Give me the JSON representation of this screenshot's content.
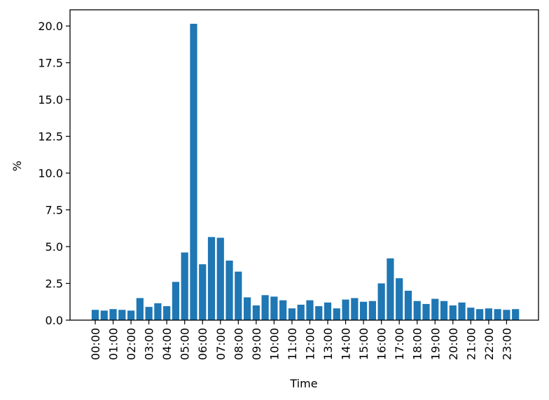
{
  "chart_data": {
    "type": "bar",
    "title": "",
    "xlabel": "Time",
    "ylabel": "%",
    "ylim": [
      0,
      21.1
    ],
    "yticks": [
      "0.0",
      "2.5",
      "5.0",
      "7.5",
      "10.0",
      "12.5",
      "15.0",
      "17.5",
      "20.0"
    ],
    "xticks": [
      "00:00",
      "01:00",
      "02:00",
      "03:00",
      "04:00",
      "05:00",
      "06:00",
      "07:00",
      "08:00",
      "09:00",
      "10:00",
      "11:00",
      "12:00",
      "13:00",
      "14:00",
      "15:00",
      "16:00",
      "17:00",
      "18:00",
      "19:00",
      "20:00",
      "21:00",
      "22:00",
      "23:00"
    ],
    "categories": [
      "00:00",
      "00:30",
      "01:00",
      "01:30",
      "02:00",
      "02:30",
      "03:00",
      "03:30",
      "04:00",
      "04:30",
      "05:00",
      "05:30",
      "06:00",
      "06:30",
      "07:00",
      "07:30",
      "08:00",
      "08:30",
      "09:00",
      "09:30",
      "10:00",
      "10:30",
      "11:00",
      "11:30",
      "12:00",
      "12:30",
      "13:00",
      "13:30",
      "14:00",
      "14:30",
      "15:00",
      "15:30",
      "16:00",
      "16:30",
      "17:00",
      "17:30",
      "18:00",
      "18:30",
      "19:00",
      "19:30",
      "20:00",
      "20:30",
      "21:00",
      "21:30",
      "22:00",
      "22:30",
      "23:00",
      "23:30"
    ],
    "values": [
      0.7,
      0.65,
      0.75,
      0.7,
      0.65,
      1.5,
      0.9,
      1.15,
      0.95,
      2.6,
      4.6,
      20.15,
      3.8,
      5.65,
      5.6,
      4.05,
      3.3,
      1.55,
      1.0,
      1.7,
      1.6,
      1.35,
      0.8,
      1.05,
      1.35,
      0.95,
      1.2,
      0.8,
      1.4,
      1.5,
      1.25,
      1.3,
      2.5,
      4.2,
      2.85,
      2.0,
      1.3,
      1.1,
      1.45,
      1.3,
      1.0,
      1.2,
      0.85,
      0.75,
      0.8,
      0.75,
      0.7,
      0.75
    ],
    "bar_color": "#1f77b4",
    "grid": false,
    "legend": "none"
  }
}
